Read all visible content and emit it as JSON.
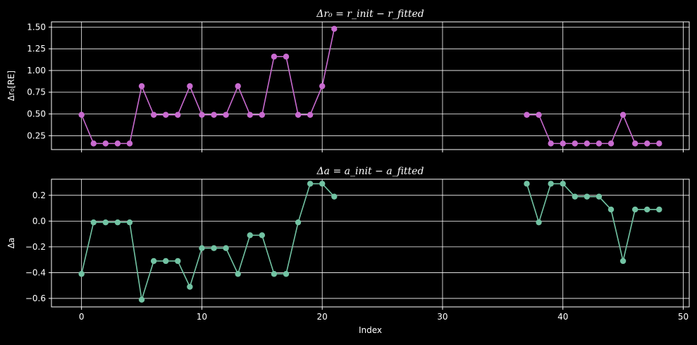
{
  "chart_data": [
    {
      "type": "line",
      "title": "Δr₀ = r_init − r_fitted",
      "xlabel": "",
      "ylabel": "Δr₀[RE]",
      "xlim": [
        -2.5,
        50.5
      ],
      "ylim": [
        0.09,
        1.56
      ],
      "xticks": [
        0,
        10,
        20,
        30,
        40,
        50
      ],
      "xtick_labels_visible": false,
      "yticks": [
        0.25,
        0.5,
        0.75,
        1.0,
        1.25,
        1.5
      ],
      "ytick_labels": [
        "0.25",
        "0.50",
        "0.75",
        "1.00",
        "1.25",
        "1.50"
      ],
      "grid": true,
      "series": [
        {
          "color": "#c96bd0",
          "segments": [
            {
              "x": [
                0,
                1,
                2,
                3,
                4,
                5,
                6,
                7,
                8,
                9,
                10,
                11,
                12,
                13,
                14,
                15,
                16,
                17,
                18,
                19,
                20,
                21
              ],
              "y": [
                0.49,
                0.16,
                0.16,
                0.16,
                0.16,
                0.82,
                0.49,
                0.49,
                0.49,
                0.82,
                0.49,
                0.49,
                0.49,
                0.82,
                0.49,
                0.49,
                1.16,
                1.16,
                0.49,
                0.49,
                0.82,
                1.48
              ]
            },
            {
              "x": [
                37,
                38,
                39,
                40,
                41,
                42,
                43,
                44,
                45,
                46,
                47,
                48
              ],
              "y": [
                0.49,
                0.49,
                0.16,
                0.16,
                0.16,
                0.16,
                0.16,
                0.16,
                0.49,
                0.16,
                0.16,
                0.16
              ]
            }
          ]
        }
      ]
    },
    {
      "type": "line",
      "title": "Δa = a_init − a_fitted",
      "xlabel": "Index",
      "ylabel": "Δa",
      "xlim": [
        -2.5,
        50.5
      ],
      "ylim": [
        -0.666,
        0.325
      ],
      "xticks": [
        0,
        10,
        20,
        30,
        40,
        50
      ],
      "xtick_labels": [
        "0",
        "10",
        "20",
        "30",
        "40",
        "50"
      ],
      "yticks": [
        -0.6,
        -0.4,
        -0.2,
        0.0,
        0.2
      ],
      "ytick_labels": [
        "−0.6",
        "−0.4",
        "−0.2",
        "0.0",
        "0.2"
      ],
      "grid": true,
      "series": [
        {
          "color": "#72c3a3",
          "segments": [
            {
              "x": [
                0,
                1,
                2,
                3,
                4,
                5,
                6,
                7,
                8,
                9,
                10,
                11,
                12,
                13,
                14,
                15,
                16,
                17,
                18,
                19,
                20,
                21
              ],
              "y": [
                -0.41,
                -0.01,
                -0.01,
                -0.01,
                -0.01,
                -0.61,
                -0.31,
                -0.31,
                -0.31,
                -0.51,
                -0.21,
                -0.21,
                -0.21,
                -0.41,
                -0.11,
                -0.11,
                -0.41,
                -0.41,
                -0.01,
                0.29,
                0.29,
                0.19
              ]
            },
            {
              "x": [
                37,
                38,
                39,
                40,
                41,
                42,
                43,
                44,
                45,
                46,
                47,
                48
              ],
              "y": [
                0.29,
                -0.01,
                0.29,
                0.29,
                0.19,
                0.19,
                0.19,
                0.09,
                -0.31,
                0.09,
                0.09,
                0.09
              ]
            }
          ]
        }
      ]
    }
  ]
}
